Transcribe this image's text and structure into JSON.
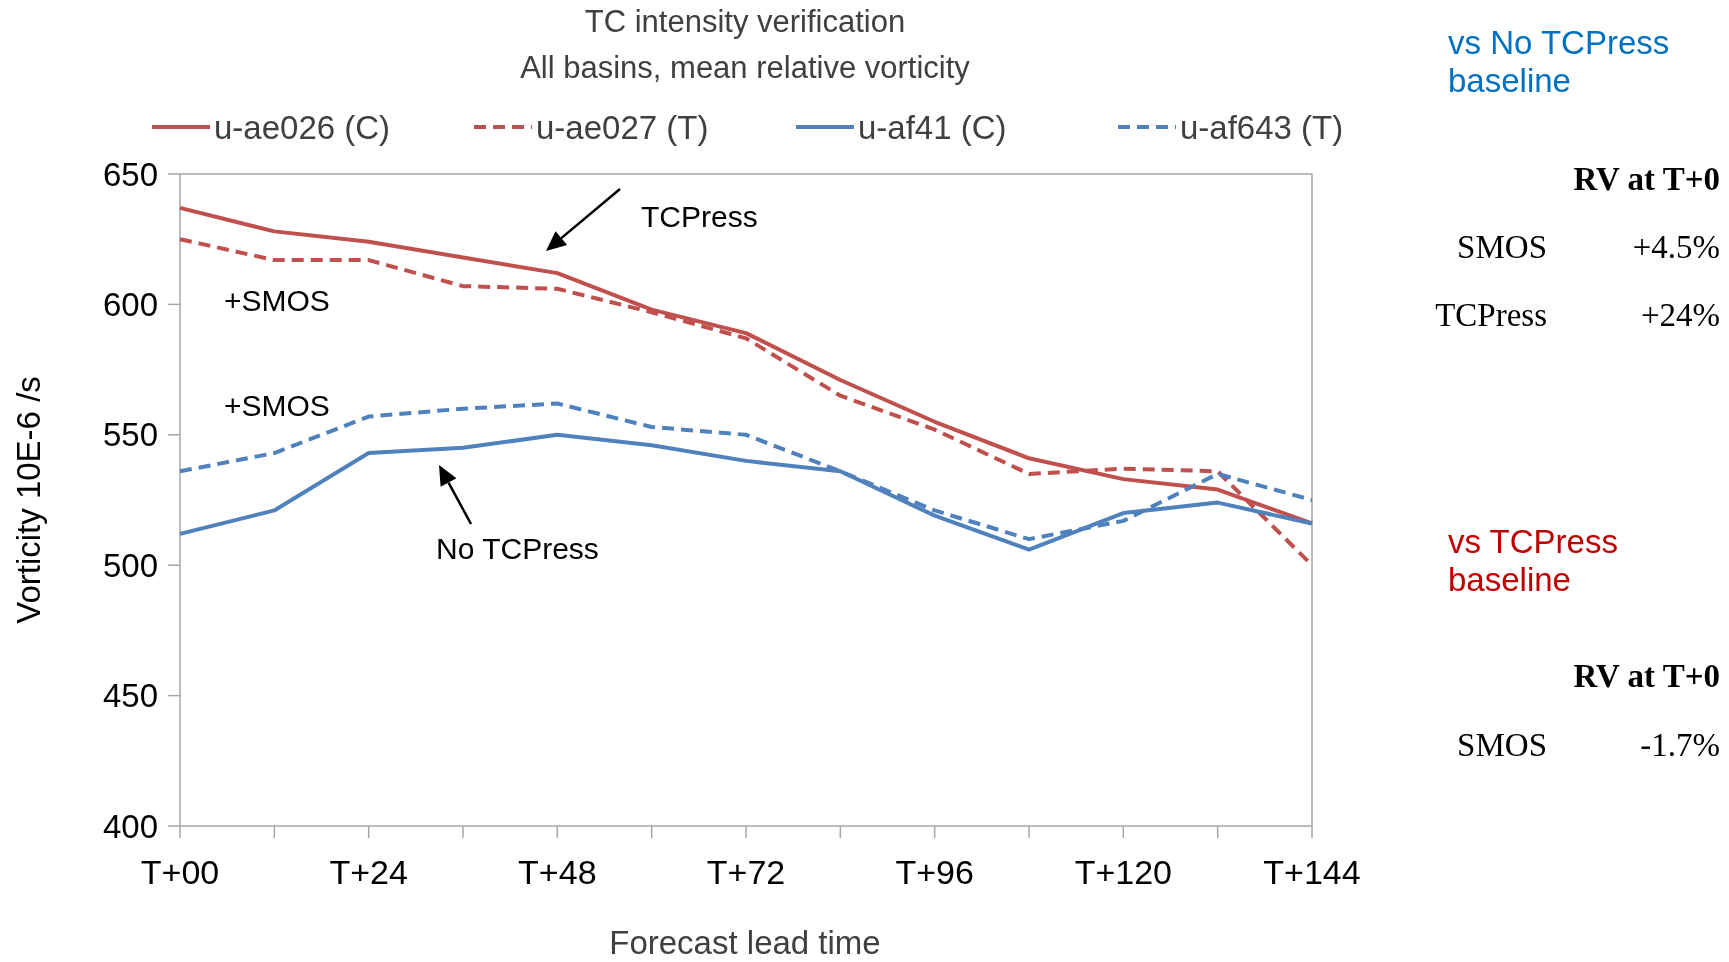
{
  "chart_data": {
    "type": "line",
    "title": "TC intensity verification",
    "subtitle": "All basins, mean relative vorticity",
    "xlabel": "Forecast lead time",
    "ylabel": "Vorticity 10E-6 /s",
    "categories": [
      "T+00",
      null,
      "T+24",
      null,
      "T+48",
      null,
      "T+72",
      null,
      "T+96",
      null,
      "T+120",
      null,
      "T+144"
    ],
    "series": [
      {
        "name": "u-ae026 (C)",
        "color": "#c0504d",
        "line_style": "solid",
        "values": [
          637,
          628,
          624,
          618,
          612,
          598,
          589,
          571,
          555,
          541,
          533,
          529,
          516
        ]
      },
      {
        "name": "u-ae027 (T)",
        "color": "#c0504d",
        "line_style": "dashed",
        "values": [
          625,
          617,
          617,
          607,
          606,
          597,
          587,
          565,
          552,
          535,
          537,
          536,
          500
        ]
      },
      {
        "name": "u-af41 (C)",
        "color": "#4f81bd",
        "line_style": "solid",
        "values": [
          512,
          521,
          543,
          545,
          550,
          546,
          540,
          536,
          519,
          506,
          520,
          524,
          516
        ]
      },
      {
        "name": "u-af643 (T)",
        "color": "#4f81bd",
        "line_style": "dashed",
        "values": [
          536,
          543,
          557,
          560,
          562,
          553,
          550,
          536,
          521,
          510,
          517,
          535,
          525
        ]
      }
    ],
    "ylim": [
      400,
      650
    ],
    "yticks": [
      400,
      450,
      500,
      550,
      600,
      650
    ],
    "grid": false,
    "legend": "top",
    "marker": "none",
    "annotations": [
      "TCPress",
      "No TCPress",
      "+SMOS",
      "+SMOS",
      "vs No TCPress baseline",
      "RV at T+0",
      "SMOS",
      "+4.5%",
      "TCPress",
      "+24%",
      "vs TCPress baseline",
      "RV at T+0",
      "SMOS",
      "-1.7%"
    ]
  }
}
